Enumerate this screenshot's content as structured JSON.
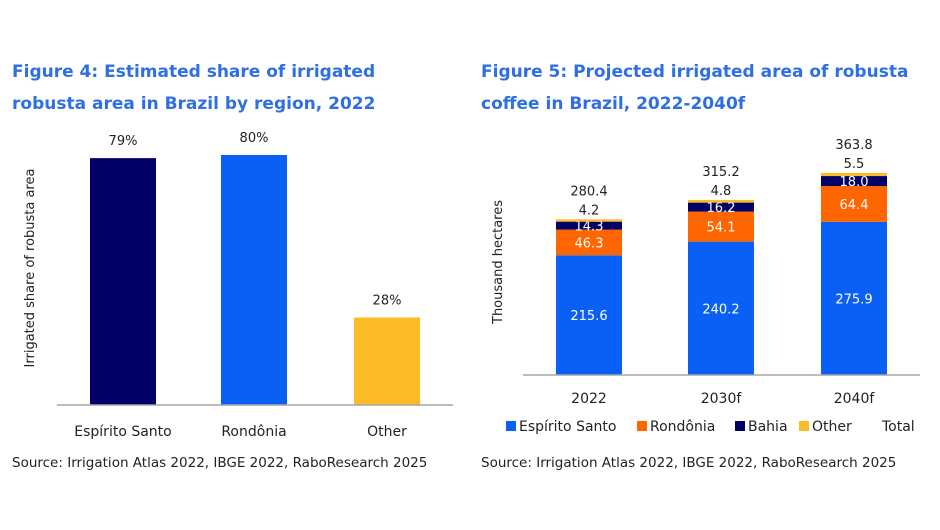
{
  "figures": {
    "fig4": {
      "title": "Figure 4: Estimated share of irrigated robusta area in Brazil by region, 2022",
      "source": "Source: Irrigation Atlas 2022, IBGE 2022, RaboResearch 2025"
    },
    "fig5": {
      "title": "Figure 5: Projected irrigated area of robusta coffee in Brazil, 2022-2040f",
      "source": "Source: Irrigation Atlas 2022, IBGE 2022, RaboResearch 2025"
    }
  },
  "chart_data": [
    {
      "type": "bar",
      "title": "Figure 4: Estimated share of irrigated robusta area in Brazil by region, 2022",
      "categories": [
        "Espírito Santo",
        "Rondônia",
        "Other"
      ],
      "values": [
        79,
        80,
        28
      ],
      "data_labels": [
        "79%",
        "80%",
        "28%"
      ],
      "colors": [
        "#000066",
        "#0a5ff5",
        "#fbbb25"
      ],
      "xlabel": "",
      "ylabel": "Irrigated share of robusta area",
      "ylim": [
        0,
        100
      ],
      "grid": false,
      "legend": "none"
    },
    {
      "type": "bar",
      "stacked": true,
      "title": "Figure 5: Projected irrigated area of robusta coffee in Brazil, 2022-2040f",
      "categories": [
        "2022",
        "2030f",
        "2040f"
      ],
      "series": [
        {
          "name": "Espírito Santo",
          "values": [
            215.6,
            240.2,
            275.9
          ],
          "color": "#0a5ff5",
          "label_color": "#ffffff"
        },
        {
          "name": "Rondônia",
          "values": [
            46.3,
            54.1,
            64.4
          ],
          "color": "#ff6600",
          "label_color": "#ffffff"
        },
        {
          "name": "Bahia",
          "values": [
            14.3,
            16.2,
            18.0
          ],
          "color": "#000066",
          "label_color": "#ffffff"
        },
        {
          "name": "Other",
          "values": [
            4.2,
            4.8,
            5.5
          ],
          "color": "#fbbb25",
          "label_color": "#222222"
        }
      ],
      "totals": {
        "name": "Total",
        "values": [
          280.4,
          315.2,
          363.8
        ]
      },
      "value_labels": {
        "Espírito Santo": [
          "215.6",
          "240.2",
          "275.9"
        ],
        "Rondônia": [
          "46.3",
          "54.1",
          "64.4"
        ],
        "Bahia": [
          "14.3",
          "16.2",
          "18.0"
        ],
        "Other": [
          "4.2",
          "4.8",
          "5.5"
        ],
        "Total": [
          "280.4",
          "315.2",
          "363.8"
        ]
      },
      "xlabel": "",
      "ylabel": "Thousand hectares",
      "ylim": [
        0,
        400
      ],
      "grid": false,
      "legend": "bottom"
    }
  ]
}
